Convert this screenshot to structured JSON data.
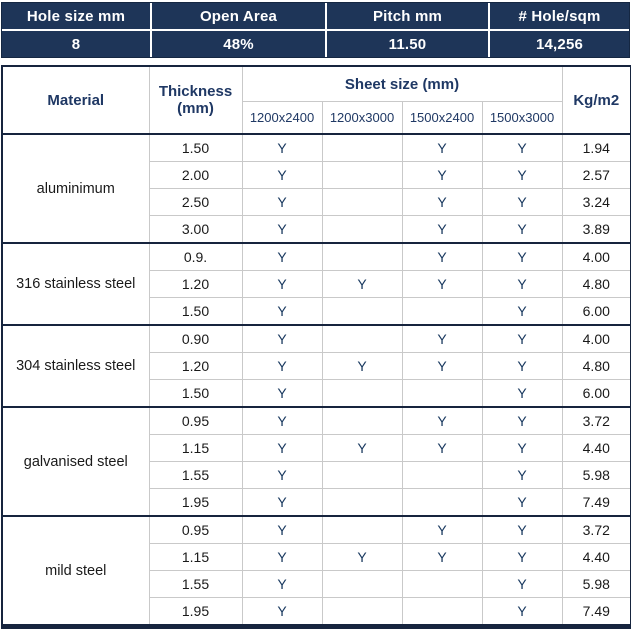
{
  "colors": {
    "band_background": "#1E3558",
    "band_text": "#FFFFFF",
    "header_text": "#1F3864",
    "body_text": "#1A1A1A",
    "availability_text": "#17375E",
    "dark_border": "#16243E",
    "light_border": "#C9C9C9"
  },
  "top_band": {
    "columns": [
      {
        "label": "Hole size mm",
        "value": "8"
      },
      {
        "label": "Open Area",
        "value": "48%"
      },
      {
        "label": "Pitch mm",
        "value": "11.50"
      },
      {
        "label": "# Hole/sqm",
        "value": "14,256"
      }
    ]
  },
  "table": {
    "headers": {
      "material": "Material",
      "thickness_line1": "Thickness",
      "thickness_line2": "(mm)",
      "sheet_size": "Sheet size (mm)",
      "kg": "Kg/m2"
    },
    "sheet_columns": [
      "1200x2400",
      "1200x3000",
      "1500x2400",
      "1500x3000"
    ],
    "sections": [
      {
        "material": "aluminimum",
        "rows": [
          {
            "thickness": "1.50",
            "sizes": [
              "Y",
              "",
              "Y",
              "Y"
            ],
            "kg": "1.94"
          },
          {
            "thickness": "2.00",
            "sizes": [
              "Y",
              "",
              "Y",
              "Y"
            ],
            "kg": "2.57"
          },
          {
            "thickness": "2.50",
            "sizes": [
              "Y",
              "",
              "Y",
              "Y"
            ],
            "kg": "3.24"
          },
          {
            "thickness": "3.00",
            "sizes": [
              "Y",
              "",
              "Y",
              "Y"
            ],
            "kg": "3.89"
          }
        ]
      },
      {
        "material": "316 stainless steel",
        "rows": [
          {
            "thickness": "0.9.",
            "sizes": [
              "Y",
              "",
              "Y",
              "Y"
            ],
            "kg": "4.00"
          },
          {
            "thickness": "1.20",
            "sizes": [
              "Y",
              "Y",
              "Y",
              "Y"
            ],
            "kg": "4.80"
          },
          {
            "thickness": "1.50",
            "sizes": [
              "Y",
              "",
              "",
              "Y"
            ],
            "kg": "6.00"
          }
        ]
      },
      {
        "material": "304 stainless steel",
        "rows": [
          {
            "thickness": "0.90",
            "sizes": [
              "Y",
              "",
              "Y",
              "Y"
            ],
            "kg": "4.00"
          },
          {
            "thickness": "1.20",
            "sizes": [
              "Y",
              "Y",
              "Y",
              "Y"
            ],
            "kg": "4.80"
          },
          {
            "thickness": "1.50",
            "sizes": [
              "Y",
              "",
              "",
              "Y"
            ],
            "kg": "6.00"
          }
        ]
      },
      {
        "material": "galvanised steel",
        "rows": [
          {
            "thickness": "0.95",
            "sizes": [
              "Y",
              "",
              "Y",
              "Y"
            ],
            "kg": "3.72"
          },
          {
            "thickness": "1.15",
            "sizes": [
              "Y",
              "Y",
              "Y",
              "Y"
            ],
            "kg": "4.40"
          },
          {
            "thickness": "1.55",
            "sizes": [
              "Y",
              "",
              "",
              "Y"
            ],
            "kg": "5.98"
          },
          {
            "thickness": "1.95",
            "sizes": [
              "Y",
              "",
              "",
              "Y"
            ],
            "kg": "7.49"
          }
        ]
      },
      {
        "material": "mild steel",
        "rows": [
          {
            "thickness": "0.95",
            "sizes": [
              "Y",
              "",
              "Y",
              "Y"
            ],
            "kg": "3.72"
          },
          {
            "thickness": "1.15",
            "sizes": [
              "Y",
              "Y",
              "Y",
              "Y"
            ],
            "kg": "4.40"
          },
          {
            "thickness": "1.55",
            "sizes": [
              "Y",
              "",
              "",
              "Y"
            ],
            "kg": "5.98"
          },
          {
            "thickness": "1.95",
            "sizes": [
              "Y",
              "",
              "",
              "Y"
            ],
            "kg": "7.49"
          }
        ]
      }
    ]
  },
  "chart_data": [
    {
      "type": "table",
      "title": "Perforation summary",
      "columns": [
        "Hole size mm",
        "Open Area",
        "Pitch mm",
        "# Hole/sqm"
      ],
      "rows": [
        [
          "8",
          "48%",
          "11.50",
          "14,256"
        ]
      ]
    },
    {
      "type": "table",
      "title": "Material / sheet size availability",
      "columns": [
        "Material",
        "Thickness (mm)",
        "1200x2400",
        "1200x3000",
        "1500x2400",
        "1500x3000",
        "Kg/m2"
      ],
      "rows": [
        [
          "aluminimum",
          "1.50",
          "Y",
          "",
          "Y",
          "Y",
          "1.94"
        ],
        [
          "aluminimum",
          "2.00",
          "Y",
          "",
          "Y",
          "Y",
          "2.57"
        ],
        [
          "aluminimum",
          "2.50",
          "Y",
          "",
          "Y",
          "Y",
          "3.24"
        ],
        [
          "aluminimum",
          "3.00",
          "Y",
          "",
          "Y",
          "Y",
          "3.89"
        ],
        [
          "316 stainless steel",
          "0.9.",
          "Y",
          "",
          "Y",
          "Y",
          "4.00"
        ],
        [
          "316 stainless steel",
          "1.20",
          "Y",
          "Y",
          "Y",
          "Y",
          "4.80"
        ],
        [
          "316 stainless steel",
          "1.50",
          "Y",
          "",
          "",
          "Y",
          "6.00"
        ],
        [
          "304 stainless steel",
          "0.90",
          "Y",
          "",
          "Y",
          "Y",
          "4.00"
        ],
        [
          "304 stainless steel",
          "1.20",
          "Y",
          "Y",
          "Y",
          "Y",
          "4.80"
        ],
        [
          "304 stainless steel",
          "1.50",
          "Y",
          "",
          "",
          "Y",
          "6.00"
        ],
        [
          "galvanised steel",
          "0.95",
          "Y",
          "",
          "Y",
          "Y",
          "3.72"
        ],
        [
          "galvanised steel",
          "1.15",
          "Y",
          "Y",
          "Y",
          "Y",
          "4.40"
        ],
        [
          "galvanised steel",
          "1.55",
          "Y",
          "",
          "",
          "Y",
          "5.98"
        ],
        [
          "galvanised steel",
          "1.95",
          "Y",
          "",
          "",
          "Y",
          "7.49"
        ],
        [
          "mild steel",
          "0.95",
          "Y",
          "",
          "Y",
          "Y",
          "3.72"
        ],
        [
          "mild steel",
          "1.15",
          "Y",
          "Y",
          "Y",
          "Y",
          "4.40"
        ],
        [
          "mild steel",
          "1.55",
          "Y",
          "",
          "",
          "Y",
          "5.98"
        ],
        [
          "mild steel",
          "1.95",
          "Y",
          "",
          "",
          "Y",
          "7.49"
        ]
      ]
    }
  ]
}
